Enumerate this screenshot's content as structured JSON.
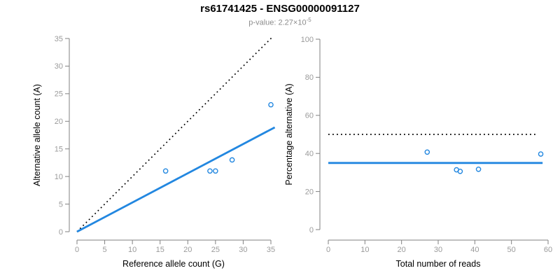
{
  "header": {
    "title": "rs61741425 - ENSG00000091127",
    "pvalue_base": "p-value: 2.27×10",
    "pvalue_exponent": "-5"
  },
  "colors": {
    "accent_blue": "#2287e0",
    "identity_black": "#000000",
    "axis_line": "#828282",
    "tick_label": "#9b9b9b",
    "axis_title": "#000000",
    "title": "#000000",
    "subtitle": "#8c8c8c"
  },
  "chart_data": [
    {
      "type": "scatter",
      "title": "",
      "xlabel": "Reference allele count (G)",
      "ylabel": "Alternative allele count (A)",
      "xlim": [
        0,
        35
      ],
      "ylim": [
        0,
        35
      ],
      "xticks": [
        0,
        5,
        10,
        15,
        20,
        25,
        30,
        35
      ],
      "yticks": [
        0,
        5,
        10,
        15,
        20,
        25,
        30,
        35
      ],
      "grid": false,
      "legend": "none",
      "points": [
        [
          16,
          11
        ],
        [
          24,
          11
        ],
        [
          25,
          11
        ],
        [
          28,
          13
        ],
        [
          35,
          23
        ]
      ],
      "point_style": {
        "shape": "open-circle",
        "color": "#2287e0"
      },
      "lines": [
        {
          "name": "identity-line",
          "dash": "dotted",
          "color": "#000000",
          "width": 1.7,
          "from": [
            0,
            0
          ],
          "to": [
            35.3,
            35.3
          ]
        },
        {
          "name": "fitted-line",
          "dash": "solid",
          "color": "#2287e0",
          "width": 2.8,
          "from": [
            0,
            0
          ],
          "to": [
            35.7,
            18.9
          ]
        }
      ]
    },
    {
      "type": "scatter",
      "title": "",
      "xlabel": "Total number of reads",
      "ylabel": "Percentage alternative (A)",
      "xlim": [
        0,
        60
      ],
      "ylim": [
        0,
        100
      ],
      "xticks": [
        0,
        10,
        20,
        30,
        40,
        50,
        60
      ],
      "yticks": [
        0,
        20,
        40,
        60,
        80,
        100
      ],
      "grid": false,
      "legend": "none",
      "points": [
        [
          27,
          40.7
        ],
        [
          35,
          31.4
        ],
        [
          36,
          30.6
        ],
        [
          41,
          31.7
        ],
        [
          58,
          39.7
        ]
      ],
      "point_style": {
        "shape": "open-circle",
        "color": "#2287e0"
      },
      "lines": [
        {
          "name": "expected-50pct-line",
          "dash": "dotted",
          "color": "#000000",
          "width": 1.7,
          "from": [
            0,
            50
          ],
          "to": [
            57.2,
            50
          ]
        },
        {
          "name": "fitted-line",
          "dash": "solid",
          "color": "#2287e0",
          "width": 2.8,
          "from": [
            0,
            35
          ],
          "to": [
            58.5,
            35
          ]
        }
      ]
    }
  ]
}
